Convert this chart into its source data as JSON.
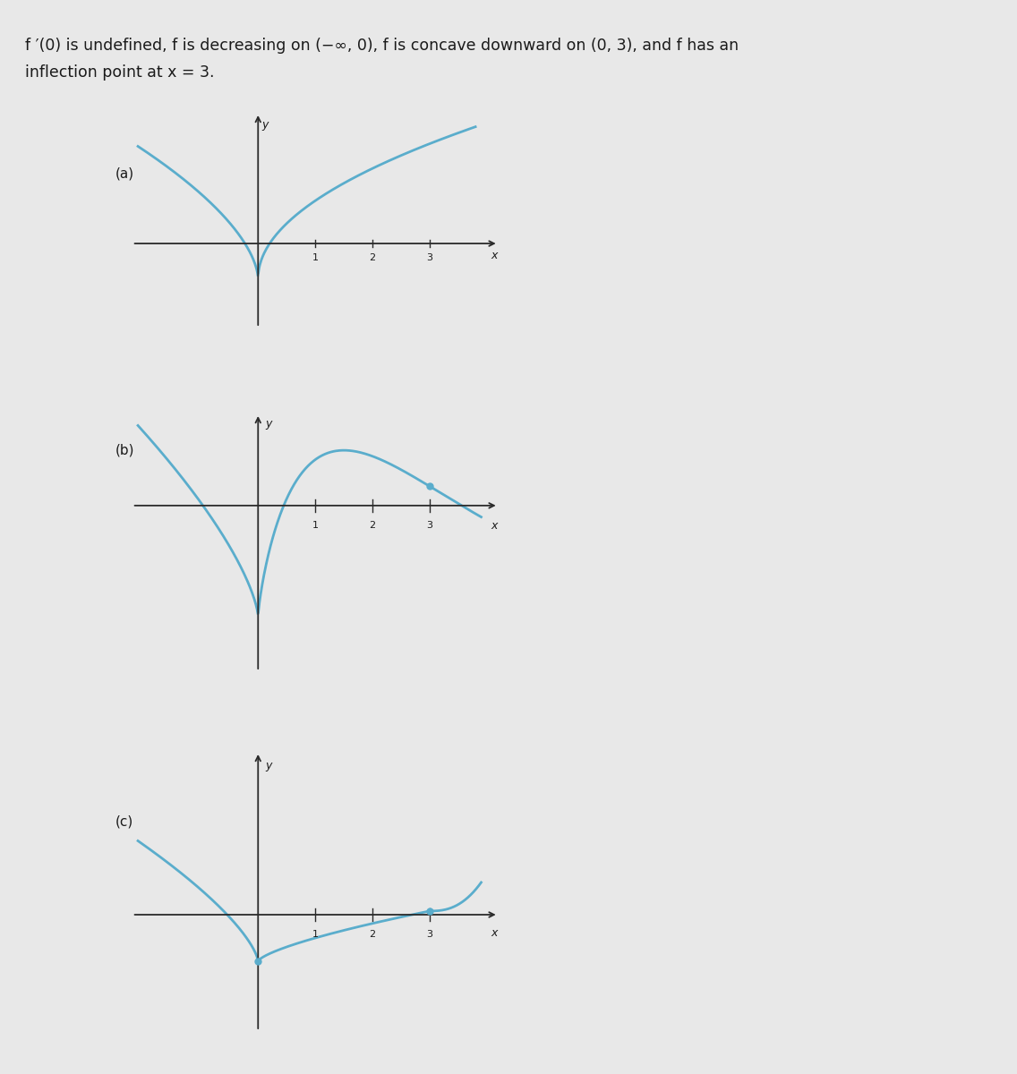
{
  "bg_color": "#e8e8e8",
  "curve_color": "#5aadcc",
  "dot_color": "#5aadcc",
  "axis_color": "#2a2a2a",
  "text_color": "#1a1a1a",
  "label_a": "(a)",
  "label_b": "(b)",
  "label_c": "(c)"
}
